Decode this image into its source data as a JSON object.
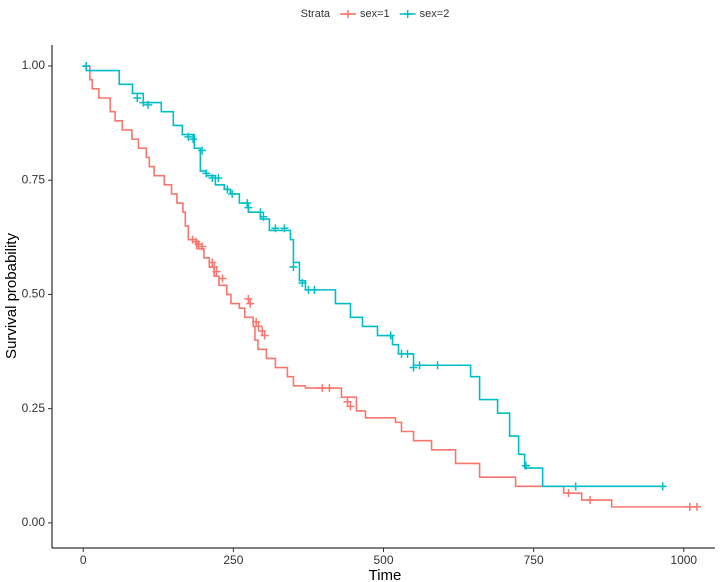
{
  "chart_data": {
    "type": "step",
    "xlabel": "Time",
    "ylabel": "Survival probability",
    "legend_title": "Strata",
    "legend_position": "top",
    "xlim": [
      -52,
      1052
    ],
    "ylim": [
      -0.055,
      1.046
    ],
    "xticks": [
      0,
      250,
      500,
      750,
      1000
    ],
    "yticks": [
      {
        "value": 0,
        "label": "0.00"
      },
      {
        "value": 0.25,
        "label": "0.25"
      },
      {
        "value": 0.5,
        "label": "0.50"
      },
      {
        "value": 0.75,
        "label": "0.75"
      },
      {
        "value": 1,
        "label": "1.00"
      }
    ],
    "series": [
      {
        "name": "sex=1",
        "color": "#F8766D",
        "x": [
          0,
          11,
          15,
          26,
          45,
          53,
          65,
          81,
          92,
          105,
          110,
          118,
          135,
          147,
          156,
          166,
          170,
          175,
          189,
          201,
          210,
          218,
          226,
          239,
          246,
          260,
          269,
          283,
          286,
          291,
          305,
          320,
          340,
          350,
          370,
          430,
          455,
          470,
          520,
          530,
          550,
          580,
          620,
          660,
          720,
          800,
          830,
          880,
          1022
        ],
        "values": [
          1.0,
          0.97,
          0.95,
          0.93,
          0.9,
          0.88,
          0.86,
          0.84,
          0.82,
          0.8,
          0.78,
          0.76,
          0.74,
          0.72,
          0.7,
          0.68,
          0.65,
          0.62,
          0.6,
          0.58,
          0.56,
          0.54,
          0.52,
          0.5,
          0.48,
          0.47,
          0.45,
          0.43,
          0.4,
          0.38,
          0.36,
          0.34,
          0.32,
          0.3,
          0.295,
          0.275,
          0.245,
          0.23,
          0.22,
          0.2,
          0.18,
          0.16,
          0.13,
          0.1,
          0.08,
          0.065,
          0.05,
          0.035,
          0.035
        ],
        "censored_x": [
          182,
          188,
          192,
          198,
          215,
          218,
          222,
          232,
          275,
          278,
          288,
          292,
          298,
          302,
          398,
          410,
          440,
          445,
          808,
          844,
          1010,
          1022
        ],
        "censored_y": [
          0.62,
          0.615,
          0.61,
          0.605,
          0.57,
          0.56,
          0.55,
          0.535,
          0.49,
          0.48,
          0.44,
          0.43,
          0.42,
          0.41,
          0.295,
          0.295,
          0.265,
          0.255,
          0.065,
          0.05,
          0.035,
          0.035
        ]
      },
      {
        "name": "sex=2",
        "color": "#00BFC4",
        "x": [
          0,
          5,
          60,
          82,
          100,
          130,
          150,
          165,
          185,
          195,
          205,
          220,
          235,
          245,
          260,
          275,
          295,
          310,
          345,
          350,
          360,
          370,
          420,
          445,
          465,
          490,
          515,
          525,
          550,
          645,
          660,
          690,
          710,
          725,
          735,
          765,
          965
        ],
        "values": [
          1.0,
          0.99,
          0.96,
          0.94,
          0.92,
          0.9,
          0.87,
          0.85,
          0.82,
          0.77,
          0.76,
          0.74,
          0.73,
          0.72,
          0.7,
          0.68,
          0.665,
          0.64,
          0.62,
          0.57,
          0.53,
          0.51,
          0.48,
          0.45,
          0.43,
          0.41,
          0.39,
          0.37,
          0.345,
          0.32,
          0.27,
          0.24,
          0.19,
          0.15,
          0.12,
          0.08,
          0.08
        ],
        "censored_x": [
          5,
          90,
          100,
          108,
          175,
          183,
          198,
          205,
          215,
          225,
          240,
          248,
          273,
          275,
          295,
          300,
          320,
          335,
          350,
          365,
          375,
          385,
          512,
          530,
          540,
          550,
          560,
          590,
          737,
          820,
          965
        ],
        "censored_y": [
          1.0,
          0.93,
          0.92,
          0.915,
          0.845,
          0.84,
          0.815,
          0.765,
          0.755,
          0.755,
          0.73,
          0.72,
          0.7,
          0.69,
          0.68,
          0.67,
          0.645,
          0.645,
          0.56,
          0.525,
          0.51,
          0.51,
          0.41,
          0.37,
          0.37,
          0.34,
          0.345,
          0.345,
          0.125,
          0.08,
          0.08
        ]
      }
    ]
  }
}
